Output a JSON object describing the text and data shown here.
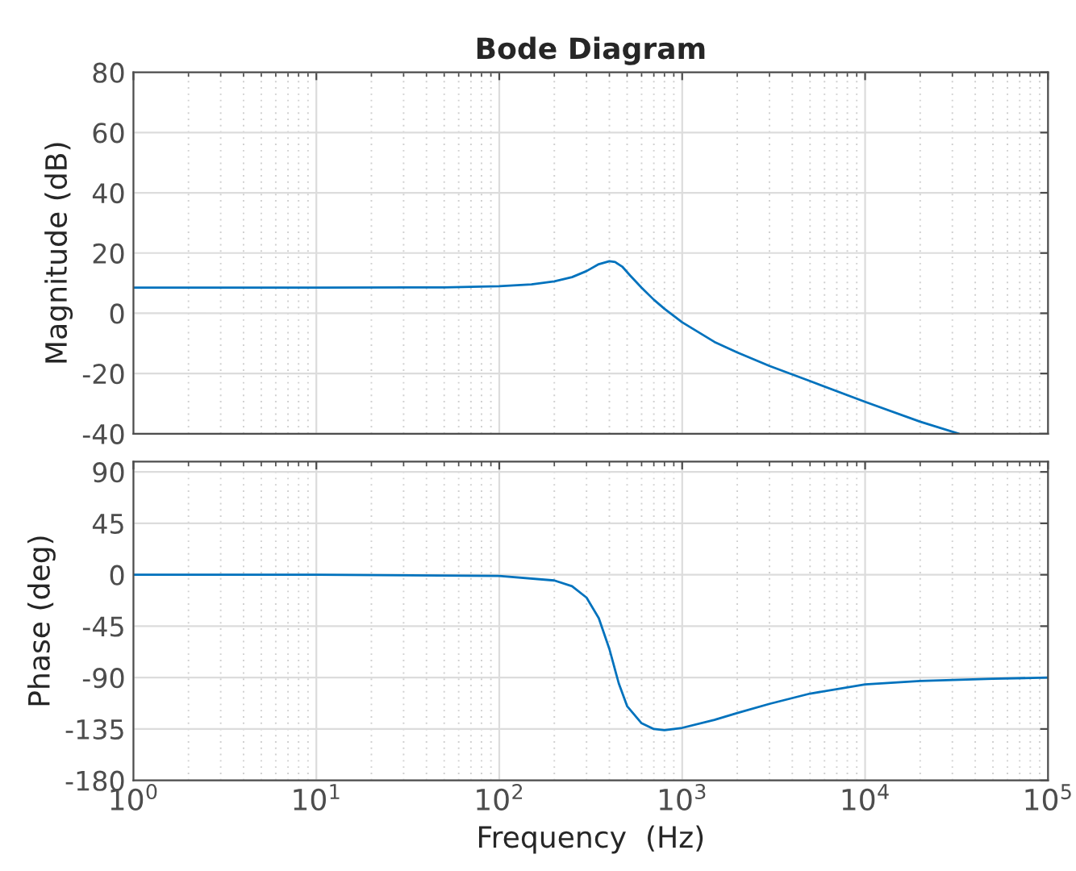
{
  "chart_data": [
    {
      "type": "line",
      "title": "Bode Diagram",
      "ylabel": "Magnitude (dB)",
      "log": "x",
      "grid": true,
      "tick_labels": "y",
      "xlim": [
        1,
        100000
      ],
      "xticks": [
        {
          "value": 1,
          "label": null
        },
        {
          "value": 10,
          "label": null
        },
        {
          "value": 100,
          "label": null
        },
        {
          "value": 1000,
          "label": null
        },
        {
          "value": 10000,
          "label": null
        },
        {
          "value": 100000,
          "label": null
        }
      ],
      "ylim": [
        -40,
        80
      ],
      "yticks": [
        -40,
        -20,
        0,
        20,
        40,
        60,
        80
      ],
      "series": [
        {
          "color": "#0072bd",
          "x": [
            1,
            10,
            50,
            100,
            150,
            200,
            250,
            300,
            350,
            400,
            430,
            470,
            520,
            600,
            700,
            800,
            1000,
            1500,
            2000,
            3000,
            5000,
            10000,
            20000,
            32600
          ],
          "values": [
            8.5,
            8.5,
            8.6,
            9.0,
            9.6,
            10.6,
            12.0,
            14.0,
            16.3,
            17.3,
            17.0,
            15.5,
            12.5,
            8.5,
            4.5,
            1.5,
            -3.0,
            -9.5,
            -13,
            -17.5,
            -22.5,
            -29.4,
            -36,
            -40
          ]
        }
      ]
    },
    {
      "type": "line",
      "xlabel": "Frequency  (Hz)",
      "ylabel": "Phase (deg)",
      "log": "x",
      "grid": true,
      "xlim": [
        1,
        100000
      ],
      "xticks": [
        {
          "value": 1,
          "label": "10$^{0}$"
        },
        {
          "value": 10,
          "label": "10$^{1}$"
        },
        {
          "value": 100,
          "label": "10$^{2}$"
        },
        {
          "value": 1000,
          "label": "10$^{3}$"
        },
        {
          "value": 10000,
          "label": "10$^{4}$"
        },
        {
          "value": 100000,
          "label": "10$^{5}$"
        }
      ],
      "ylim": [
        -180,
        99
      ],
      "yticks": [
        -180,
        -135,
        -90,
        -45,
        0,
        45,
        90
      ],
      "series": [
        {
          "color": "#0072bd",
          "x": [
            1,
            10,
            100,
            200,
            250,
            300,
            350,
            400,
            450,
            500,
            600,
            700,
            800,
            1000,
            1500,
            2000,
            3000,
            5000,
            10000,
            20000,
            50000,
            100000
          ],
          "values": [
            0,
            0,
            -1,
            -5,
            -10,
            -20,
            -38,
            -65,
            -95,
            -115,
            -130,
            -135,
            -136,
            -134,
            -127,
            -121,
            -113,
            -104,
            -96,
            -93,
            -91,
            -90
          ]
        }
      ]
    }
  ]
}
